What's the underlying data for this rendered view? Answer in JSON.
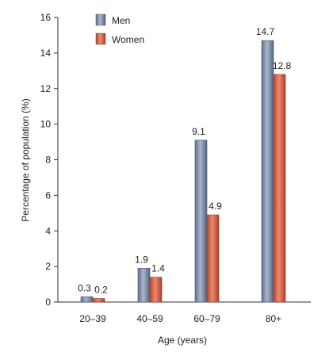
{
  "chart_data": {
    "type": "bar",
    "title": "",
    "xlabel": "Age (years)",
    "ylabel": "Percentage of population (%)",
    "ylim": [
      0,
      16
    ],
    "yticks": [
      0,
      2,
      4,
      6,
      8,
      10,
      12,
      14,
      16
    ],
    "categories": [
      "20–39",
      "40–59",
      "60–79",
      "80+"
    ],
    "series": [
      {
        "name": "Men",
        "values": [
          0.3,
          1.9,
          9.1,
          14.7
        ],
        "labels": [
          "0.3",
          "1.9",
          "9.1",
          "14.7"
        ],
        "color": "#7f8fad"
      },
      {
        "name": "Women",
        "values": [
          0.2,
          1.4,
          4.9,
          12.8
        ],
        "labels": [
          "0.2",
          "1.4",
          "4.9",
          "12.8"
        ],
        "color": "#d9614a"
      }
    ],
    "legend": "top-left",
    "grid": false
  }
}
